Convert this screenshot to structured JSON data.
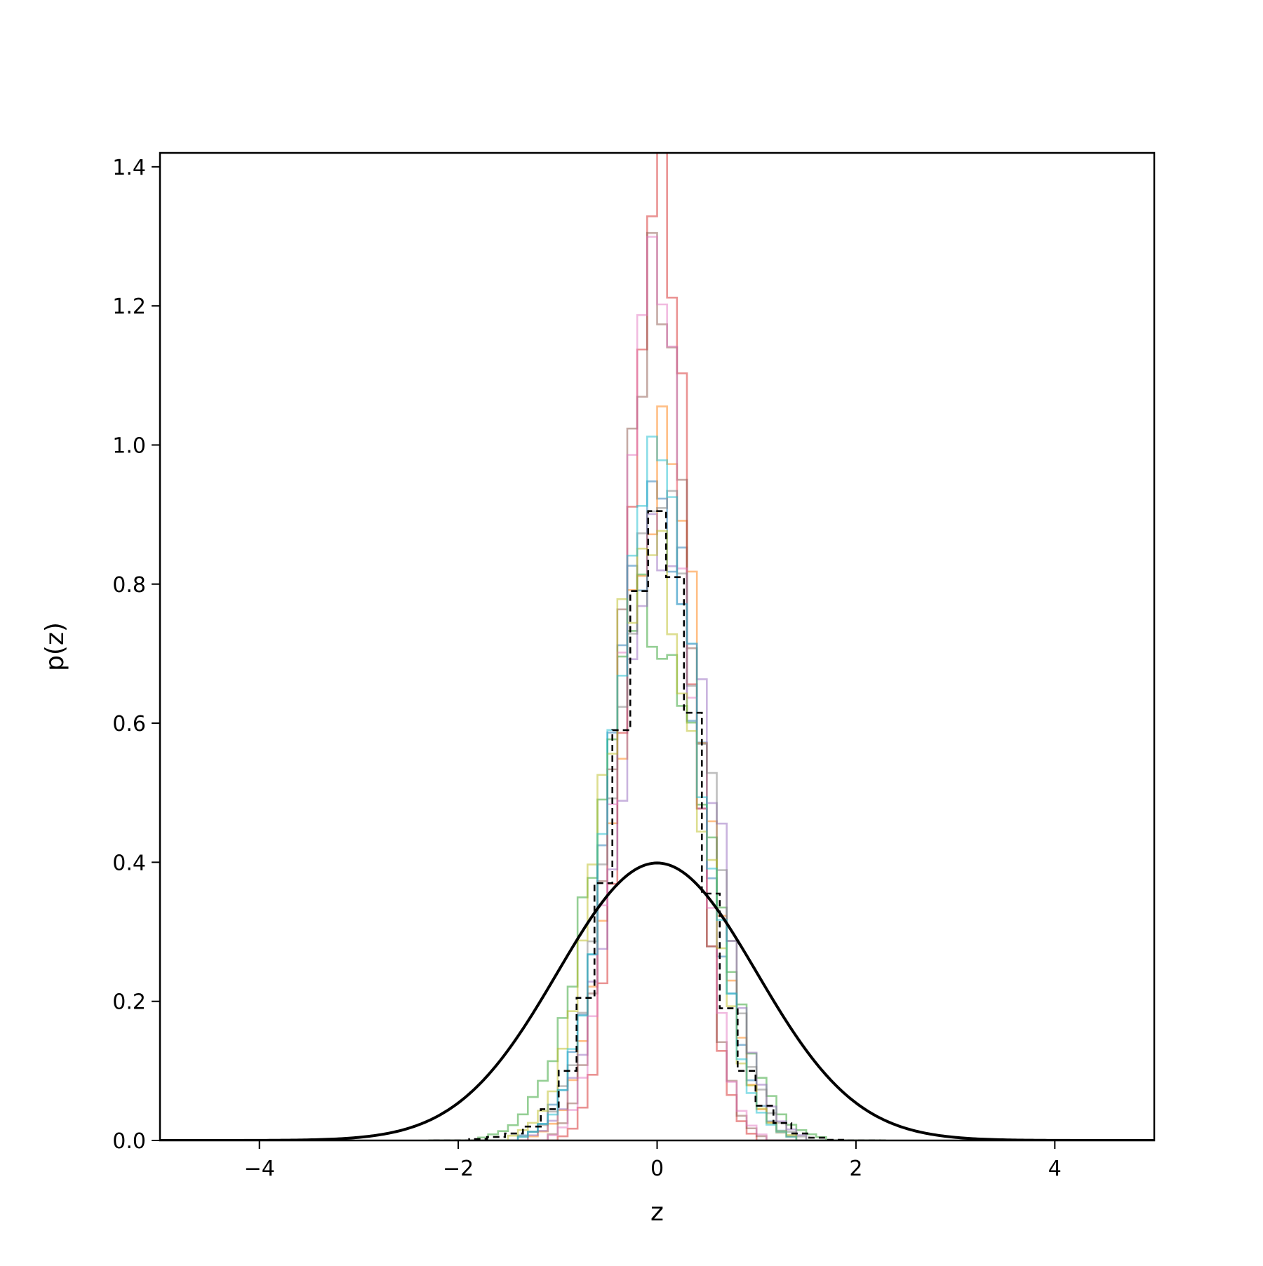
{
  "chart_data": {
    "type": "line",
    "title": "",
    "xlabel": "z",
    "ylabel": "p(z)",
    "xlim": [
      -5,
      5
    ],
    "ylim": [
      0,
      1.42
    ],
    "x_ticks": [
      -4,
      -2,
      0,
      2,
      4
    ],
    "x_tick_labels": [
      "−4",
      "−2",
      "0",
      "2",
      "4"
    ],
    "y_ticks": [
      0.0,
      0.2,
      0.4,
      0.6,
      0.8,
      1.0,
      1.2,
      1.4
    ],
    "y_tick_labels": [
      "0.0",
      "0.2",
      "0.4",
      "0.6",
      "0.8",
      "1.0",
      "1.2",
      "1.4"
    ],
    "grid": false,
    "legend": "none",
    "histogram_colors": [
      "#1f77b4",
      "#ff7f0e",
      "#2ca02c",
      "#d62728",
      "#9467bd",
      "#8c564b",
      "#e377c2",
      "#7f7f7f",
      "#bcbd22",
      "#17becf"
    ],
    "series": [
      {
        "kind": "pdf-curve",
        "distribution": "standard normal",
        "color": "#000000",
        "style": "solid",
        "x_range": [
          -5,
          5
        ],
        "peak": 0.399
      },
      {
        "kind": "histogram",
        "color": "#000000",
        "style": "dashed",
        "bin_width": 0.18,
        "bin_edges": [
          -2.25,
          -2.07,
          -1.89,
          -1.71,
          -1.53,
          -1.35,
          -1.17,
          -0.99,
          -0.81,
          -0.63,
          -0.45,
          -0.27,
          -0.09,
          0.09,
          0.27,
          0.45,
          0.63,
          0.81,
          0.99,
          1.17,
          1.35,
          1.53,
          1.71,
          1.89,
          2.07,
          2.25
        ],
        "counts": [
          0.0,
          0.0,
          0.002,
          0.005,
          0.01,
          0.02,
          0.045,
          0.1,
          0.205,
          0.37,
          0.59,
          0.79,
          0.905,
          0.81,
          0.615,
          0.355,
          0.19,
          0.1,
          0.05,
          0.025,
          0.01,
          0.004,
          0.001,
          0.0,
          0.0
        ]
      },
      {
        "kind": "histogram-ensemble",
        "count": 10,
        "opacity": 0.5,
        "bin_width": 0.1,
        "peak_heights": [
          0.93,
          0.98,
          0.75,
          1.35,
          0.92,
          1.2,
          1.2,
          0.9,
          0.88,
          0.95
        ],
        "peak_locations": [
          0.0,
          0.05,
          -0.05,
          0.02,
          0.1,
          -0.02,
          0.0,
          0.05,
          -0.05,
          0.0
        ],
        "bin_centers": [
          -2.25,
          -2.15,
          -2.05,
          -1.95,
          -1.85,
          -1.75,
          -1.65,
          -1.55,
          -1.45,
          -1.35,
          -1.25,
          -1.15,
          -1.05,
          -0.95,
          -0.85,
          -0.75,
          -0.65,
          -0.55,
          -0.45,
          -0.35,
          -0.25,
          -0.15,
          -0.05,
          0.05,
          0.15,
          0.25,
          0.35,
          0.45,
          0.55,
          0.65,
          0.75,
          0.85,
          0.95,
          1.05,
          1.15,
          1.25,
          1.35,
          1.45,
          1.55,
          1.65,
          1.75,
          1.85,
          1.95,
          2.05,
          2.15,
          2.25
        ]
      }
    ]
  }
}
